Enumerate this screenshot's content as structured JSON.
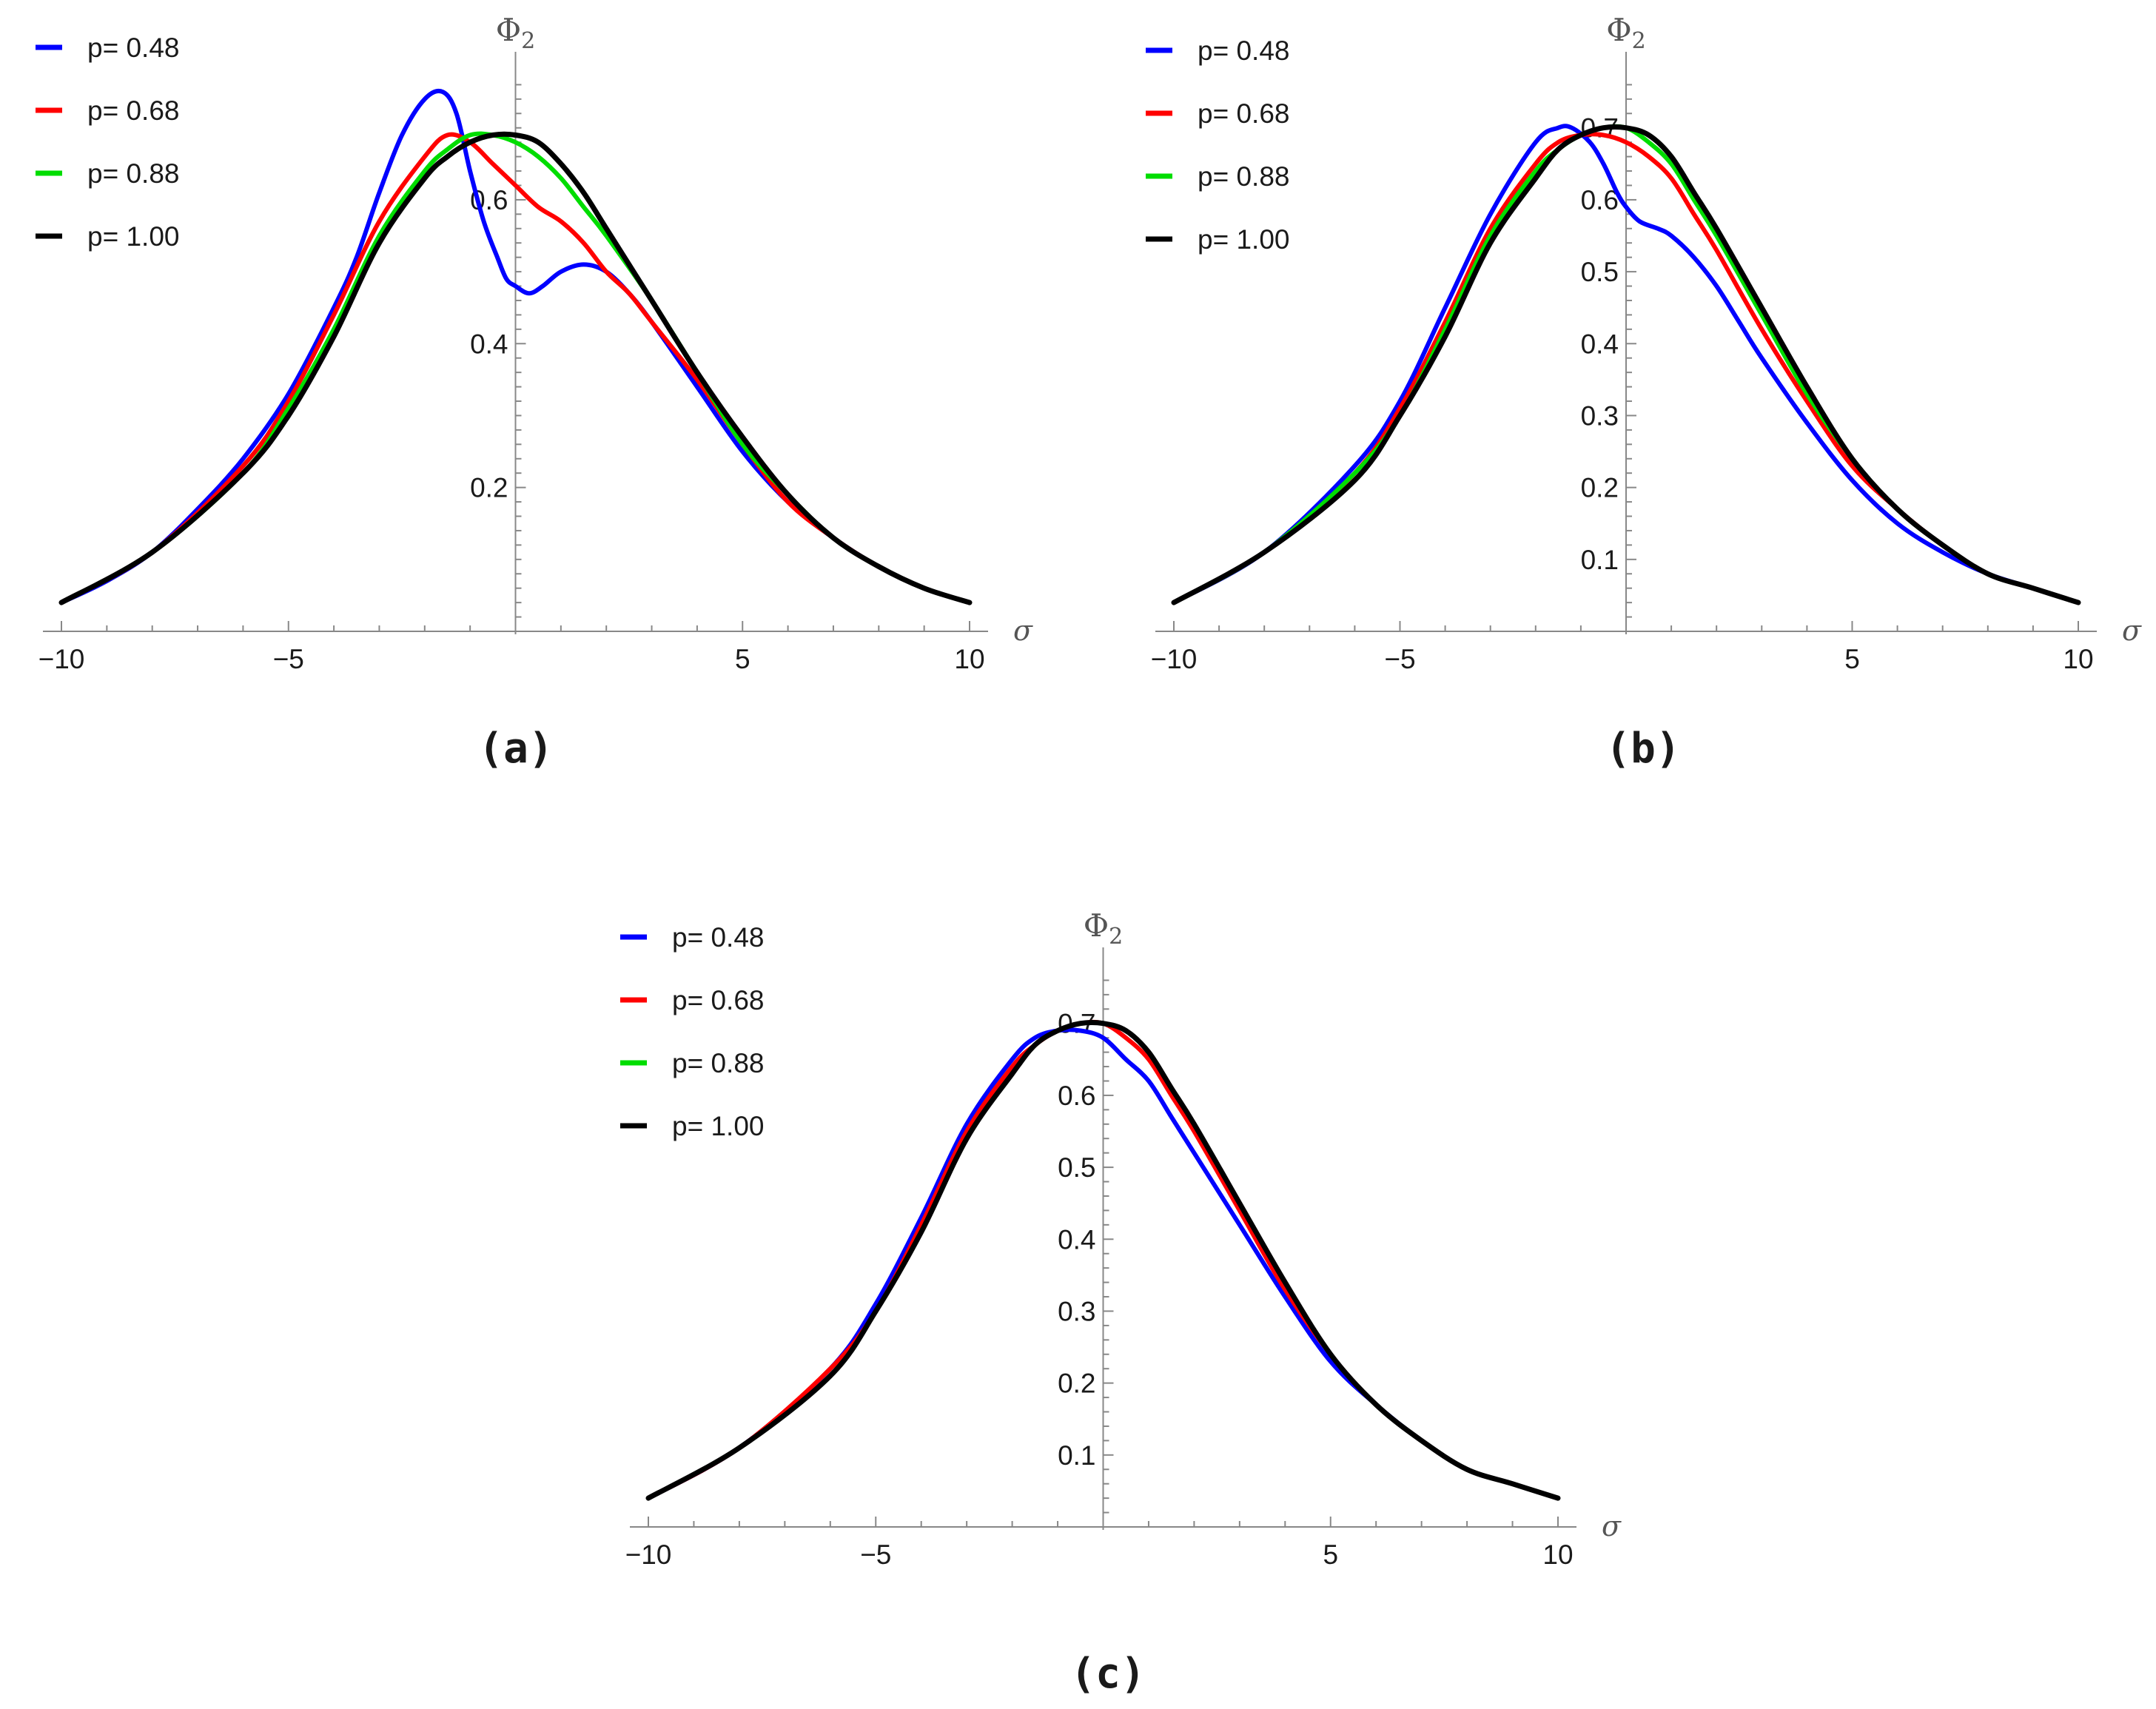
{
  "chart_data": [
    {
      "panel": "(a)",
      "type": "line",
      "xlabel": "σ",
      "ylabel": "Φ2",
      "xlim": [
        -10,
        10
      ],
      "ylim": [
        0,
        0.78
      ],
      "xticks": [
        -10,
        -5,
        5,
        10
      ],
      "xtick_labels": [
        "−10",
        "−5",
        "5",
        "10"
      ],
      "yticks": [
        0.2,
        0.4,
        0.6
      ],
      "ytick_labels": [
        "0.2",
        "0.4",
        "0.6"
      ],
      "legend": [
        "p= 0.48",
        "p= 0.68",
        "p= 0.88",
        "p= 1.00"
      ],
      "series": [
        {
          "name": "p= 0.48",
          "color": "#0000ff",
          "x": [
            -10,
            -9,
            -8,
            -7,
            -6,
            -5,
            -4,
            -3.5,
            -3,
            -2.5,
            -2,
            -1.6,
            -1.3,
            -1,
            -0.7,
            -0.4,
            -0.2,
            0,
            0.3,
            0.6,
            1,
            1.5,
            2,
            2.5,
            3,
            4,
            5,
            6,
            7,
            8,
            9,
            10
          ],
          "y": [
            0.04,
            0.07,
            0.11,
            0.17,
            0.24,
            0.33,
            0.45,
            0.52,
            0.61,
            0.69,
            0.74,
            0.75,
            0.72,
            0.64,
            0.57,
            0.52,
            0.49,
            0.48,
            0.47,
            0.48,
            0.5,
            0.51,
            0.5,
            0.47,
            0.43,
            0.34,
            0.25,
            0.18,
            0.13,
            0.09,
            0.06,
            0.04
          ]
        },
        {
          "name": "p= 0.68",
          "color": "#ff0000",
          "x": [
            -10,
            -8,
            -6,
            -5,
            -4,
            -3,
            -2,
            -1.5,
            -1,
            -0.5,
            0,
            0.5,
            1,
            1.5,
            2,
            2.5,
            3,
            4,
            5,
            6,
            7,
            8,
            9,
            10
          ],
          "y": [
            0.04,
            0.11,
            0.23,
            0.32,
            0.44,
            0.57,
            0.66,
            0.69,
            0.68,
            0.65,
            0.62,
            0.59,
            0.57,
            0.54,
            0.5,
            0.47,
            0.43,
            0.35,
            0.26,
            0.18,
            0.13,
            0.09,
            0.06,
            0.04
          ]
        },
        {
          "name": "p= 0.88",
          "color": "#00dd00",
          "x": [
            -10,
            -8,
            -6,
            -5,
            -4,
            -3,
            -2,
            -1.5,
            -1,
            -0.5,
            0,
            0.5,
            1,
            1.5,
            2,
            3,
            4,
            5,
            6,
            7,
            8,
            9,
            10
          ],
          "y": [
            0.04,
            0.11,
            0.22,
            0.31,
            0.42,
            0.55,
            0.64,
            0.67,
            0.69,
            0.69,
            0.68,
            0.66,
            0.63,
            0.59,
            0.55,
            0.46,
            0.36,
            0.26,
            0.19,
            0.13,
            0.09,
            0.06,
            0.04
          ]
        },
        {
          "name": "p= 1.00",
          "color": "#000000",
          "x": [
            -10,
            -8,
            -6,
            -5,
            -4,
            -3,
            -2,
            -1.5,
            -1,
            -0.5,
            0,
            0.5,
            1,
            1.5,
            2,
            3,
            4,
            5,
            6,
            7,
            8,
            9,
            10
          ],
          "y": [
            0.04,
            0.11,
            0.22,
            0.3,
            0.41,
            0.54,
            0.63,
            0.66,
            0.68,
            0.69,
            0.69,
            0.68,
            0.65,
            0.61,
            0.56,
            0.46,
            0.36,
            0.27,
            0.19,
            0.13,
            0.09,
            0.06,
            0.04
          ]
        }
      ]
    },
    {
      "panel": "(b)",
      "type": "line",
      "xlabel": "σ",
      "ylabel": "Φ2",
      "xlim": [
        -10,
        10
      ],
      "ylim": [
        0,
        0.78
      ],
      "xticks": [
        -10,
        -5,
        5,
        10
      ],
      "xtick_labels": [
        "−10",
        "−5",
        "5",
        "10"
      ],
      "yticks": [
        0.1,
        0.2,
        0.3,
        0.4,
        0.5,
        0.6,
        0.7
      ],
      "ytick_labels": [
        "0.1",
        "0.2",
        "0.3",
        "0.4",
        "0.5",
        "0.6",
        "0.7"
      ],
      "legend": [
        "p= 0.48",
        "p= 0.68",
        "p= 0.88",
        "p= 1.00"
      ],
      "series": [
        {
          "name": "p= 0.48",
          "color": "#0000ff",
          "x": [
            -10,
            -8,
            -6,
            -5,
            -4,
            -3,
            -2,
            -1.5,
            -1.2,
            -0.8,
            -0.5,
            -0.2,
            0,
            0.3,
            0.7,
            1,
            1.5,
            2,
            2.5,
            3,
            4,
            5,
            6,
            7,
            8,
            9,
            10
          ],
          "y": [
            0.04,
            0.11,
            0.23,
            0.32,
            0.45,
            0.58,
            0.68,
            0.7,
            0.7,
            0.68,
            0.65,
            0.61,
            0.59,
            0.57,
            0.56,
            0.55,
            0.52,
            0.48,
            0.43,
            0.38,
            0.29,
            0.21,
            0.15,
            0.11,
            0.08,
            0.06,
            0.04
          ]
        },
        {
          "name": "p= 0.68",
          "color": "#ff0000",
          "x": [
            -10,
            -8,
            -6,
            -5,
            -4,
            -3,
            -2,
            -1.5,
            -1,
            -0.5,
            0,
            0.5,
            1,
            1.5,
            2,
            3,
            4,
            5,
            6,
            7,
            8,
            9,
            10
          ],
          "y": [
            0.04,
            0.11,
            0.22,
            0.31,
            0.43,
            0.56,
            0.65,
            0.68,
            0.69,
            0.69,
            0.68,
            0.66,
            0.63,
            0.58,
            0.53,
            0.42,
            0.32,
            0.23,
            0.17,
            0.12,
            0.08,
            0.06,
            0.04
          ]
        },
        {
          "name": "p= 0.88",
          "color": "#00dd00",
          "x": [
            -10,
            -8,
            -6,
            -5,
            -4,
            -3,
            -2,
            -1.5,
            -1,
            -0.5,
            0,
            0.5,
            1,
            1.5,
            2,
            3,
            4,
            5,
            6,
            7,
            8,
            9,
            10
          ],
          "y": [
            0.04,
            0.11,
            0.22,
            0.3,
            0.42,
            0.55,
            0.64,
            0.67,
            0.69,
            0.7,
            0.7,
            0.68,
            0.65,
            0.6,
            0.55,
            0.44,
            0.33,
            0.24,
            0.17,
            0.12,
            0.08,
            0.06,
            0.04
          ]
        },
        {
          "name": "p= 1.00",
          "color": "#000000",
          "x": [
            -10,
            -8,
            -6,
            -5,
            -4,
            -3,
            -2,
            -1.5,
            -1,
            -0.5,
            0,
            0.5,
            1,
            1.5,
            2,
            3,
            4,
            5,
            6,
            7,
            8,
            9,
            10
          ],
          "y": [
            0.04,
            0.11,
            0.21,
            0.3,
            0.41,
            0.54,
            0.63,
            0.67,
            0.69,
            0.7,
            0.7,
            0.69,
            0.66,
            0.61,
            0.56,
            0.45,
            0.34,
            0.24,
            0.17,
            0.12,
            0.08,
            0.06,
            0.04
          ]
        }
      ]
    },
    {
      "panel": "(c)",
      "type": "line",
      "xlabel": "σ",
      "ylabel": "Φ2",
      "xlim": [
        -10,
        10
      ],
      "ylim": [
        0,
        0.78
      ],
      "xticks": [
        -10,
        -5,
        5,
        10
      ],
      "xtick_labels": [
        "−10",
        "−5",
        "5",
        "10"
      ],
      "yticks": [
        0.1,
        0.2,
        0.3,
        0.4,
        0.5,
        0.6,
        0.7
      ],
      "ytick_labels": [
        "0.1",
        "0.2",
        "0.3",
        "0.4",
        "0.5",
        "0.6",
        "0.7"
      ],
      "legend": [
        "p= 0.48",
        "p= 0.68",
        "p= 0.88",
        "p= 1.00"
      ],
      "series": [
        {
          "name": "p= 0.48",
          "color": "#0000ff",
          "x": [
            -10,
            -8,
            -6,
            -5,
            -4,
            -3,
            -2,
            -1.5,
            -1,
            -0.5,
            0,
            0.5,
            1,
            1.5,
            2,
            3,
            4,
            5,
            6,
            7,
            8,
            9,
            10
          ],
          "y": [
            0.04,
            0.11,
            0.22,
            0.31,
            0.43,
            0.56,
            0.65,
            0.68,
            0.69,
            0.69,
            0.68,
            0.65,
            0.62,
            0.57,
            0.52,
            0.42,
            0.32,
            0.23,
            0.17,
            0.12,
            0.08,
            0.06,
            0.04
          ]
        },
        {
          "name": "p= 0.68",
          "color": "#ff0000",
          "x": [
            -10,
            -8,
            -6,
            -5,
            -4,
            -3,
            -2,
            -1.5,
            -1,
            -0.5,
            0,
            0.5,
            1,
            1.5,
            2,
            3,
            4,
            5,
            6,
            7,
            8,
            9,
            10
          ],
          "y": [
            0.04,
            0.11,
            0.22,
            0.3,
            0.42,
            0.55,
            0.64,
            0.67,
            0.69,
            0.7,
            0.7,
            0.68,
            0.65,
            0.6,
            0.55,
            0.44,
            0.33,
            0.24,
            0.17,
            0.12,
            0.08,
            0.06,
            0.04
          ]
        },
        {
          "name": "p= 0.88",
          "color": "#00dd00",
          "x": [
            -10,
            -8,
            -6,
            -5,
            -4,
            -3,
            -2,
            -1.5,
            -1,
            -0.5,
            0,
            0.5,
            1,
            1.5,
            2,
            3,
            4,
            5,
            6,
            7,
            8,
            9,
            10
          ],
          "y": [
            0.04,
            0.11,
            0.21,
            0.3,
            0.41,
            0.54,
            0.63,
            0.67,
            0.69,
            0.7,
            0.7,
            0.69,
            0.66,
            0.61,
            0.56,
            0.45,
            0.34,
            0.24,
            0.17,
            0.12,
            0.08,
            0.06,
            0.04
          ]
        },
        {
          "name": "p= 1.00",
          "color": "#000000",
          "x": [
            -10,
            -8,
            -6,
            -5,
            -4,
            -3,
            -2,
            -1.5,
            -1,
            -0.5,
            0,
            0.5,
            1,
            1.5,
            2,
            3,
            4,
            5,
            6,
            7,
            8,
            9,
            10
          ],
          "y": [
            0.04,
            0.11,
            0.21,
            0.3,
            0.41,
            0.54,
            0.63,
            0.67,
            0.69,
            0.7,
            0.7,
            0.69,
            0.66,
            0.61,
            0.56,
            0.45,
            0.34,
            0.24,
            0.17,
            0.12,
            0.08,
            0.06,
            0.04
          ]
        }
      ]
    }
  ]
}
